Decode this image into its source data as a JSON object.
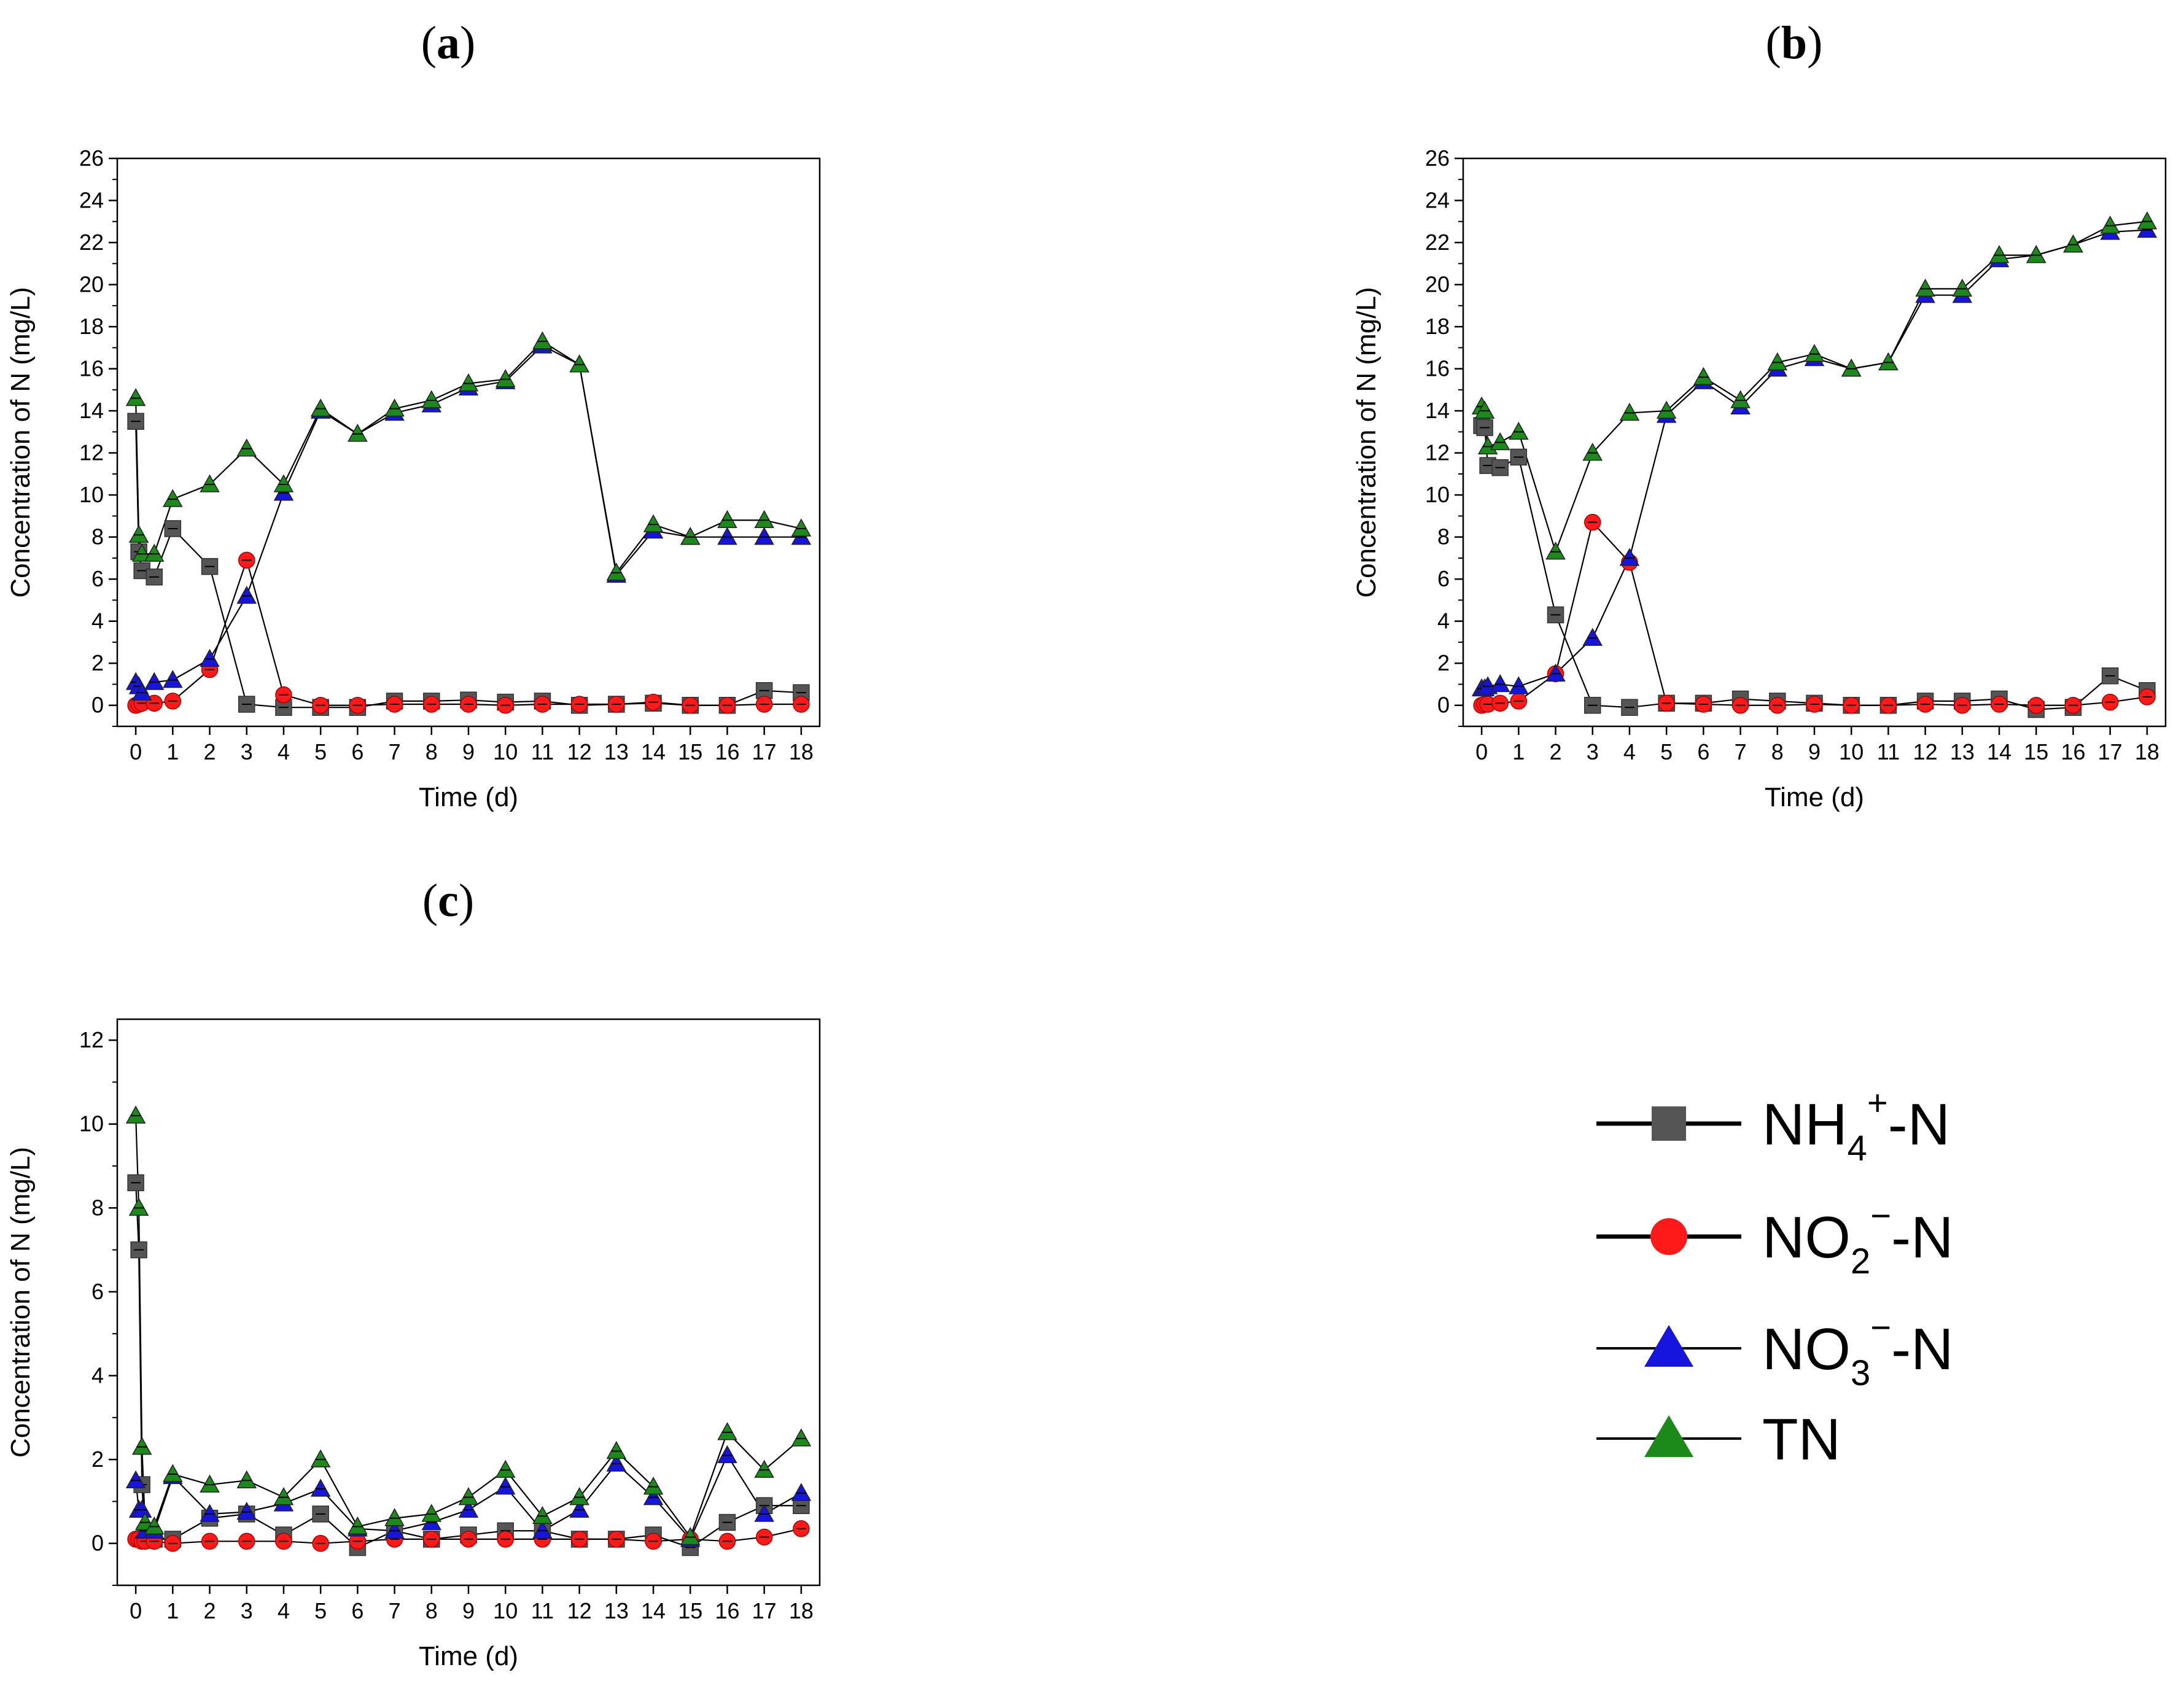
{
  "chart_data": [
    {
      "type": "line",
      "panel_label": "a",
      "title": "",
      "xlabel": "Time (d)",
      "ylabel": "Concentration of N (mg/L)",
      "xlim": [
        -0.5,
        18.5
      ],
      "ylim": [
        -1,
        26
      ],
      "yticks": [
        0,
        2,
        4,
        6,
        8,
        10,
        12,
        14,
        16,
        18,
        20,
        22,
        24,
        26
      ],
      "xticks": [
        0,
        1,
        2,
        3,
        4,
        5,
        6,
        7,
        8,
        9,
        10,
        11,
        12,
        13,
        14,
        15,
        16,
        17,
        18
      ],
      "series": [
        {
          "name": "NH4+-N",
          "x": [
            0,
            0.083,
            0.167,
            0.5,
            1,
            2,
            3,
            4,
            5,
            6,
            7,
            8,
            9,
            10,
            11,
            12,
            13,
            14,
            15,
            16,
            17,
            18
          ],
          "values": [
            13.5,
            7.3,
            6.4,
            6.1,
            8.4,
            6.6,
            0.05,
            -0.1,
            -0.1,
            -0.1,
            0.2,
            0.2,
            0.25,
            0.15,
            0.2,
            0.0,
            0.05,
            0.1,
            0.0,
            0.0,
            0.7,
            0.6
          ]
        },
        {
          "name": "NO2−-N",
          "x": [
            0,
            0.083,
            0.167,
            0.5,
            1,
            2,
            3,
            4,
            5,
            6,
            7,
            8,
            9,
            10,
            11,
            12,
            13,
            14,
            15,
            16,
            17,
            18
          ],
          "values": [
            0.0,
            0.05,
            0.1,
            0.1,
            0.2,
            1.7,
            6.9,
            0.5,
            0.0,
            0.0,
            0.05,
            0.05,
            0.05,
            0.0,
            0.05,
            0.05,
            0.05,
            0.15,
            0.0,
            0.0,
            0.05,
            0.05
          ]
        },
        {
          "name": "NO3−-N",
          "x": [
            0,
            0.083,
            0.167,
            0.5,
            1,
            2,
            3,
            4,
            5,
            6,
            7,
            8,
            9,
            10,
            11,
            12,
            13,
            14,
            15,
            16,
            17,
            18
          ],
          "values": [
            1.1,
            0.9,
            0.6,
            1.1,
            1.2,
            2.2,
            5.2,
            10.1,
            14.0,
            12.9,
            13.9,
            14.3,
            15.1,
            15.4,
            17.1,
            16.2,
            6.2,
            8.3,
            8.0,
            8.0,
            8.0,
            8.0
          ]
        },
        {
          "name": "TN",
          "x": [
            0,
            0.083,
            0.167,
            0.5,
            1,
            2,
            3,
            4,
            5,
            6,
            7,
            8,
            9,
            10,
            11,
            12,
            13,
            14,
            15,
            16,
            17,
            18
          ],
          "values": [
            14.6,
            8.1,
            7.2,
            7.2,
            9.8,
            10.5,
            12.2,
            10.5,
            14.1,
            12.9,
            14.1,
            14.5,
            15.3,
            15.5,
            17.3,
            16.2,
            6.3,
            8.6,
            8.0,
            8.8,
            8.8,
            8.4
          ]
        }
      ]
    },
    {
      "type": "line",
      "panel_label": "b",
      "title": "",
      "xlabel": "Time (d)",
      "ylabel": "Concentration of N (mg/L)",
      "xlim": [
        -0.5,
        18.5
      ],
      "ylim": [
        -1,
        26
      ],
      "yticks": [
        0,
        2,
        4,
        6,
        8,
        10,
        12,
        14,
        16,
        18,
        20,
        22,
        24,
        26
      ],
      "xticks": [
        0,
        1,
        2,
        3,
        4,
        5,
        6,
        7,
        8,
        9,
        10,
        11,
        12,
        13,
        14,
        15,
        16,
        17,
        18
      ],
      "series": [
        {
          "name": "NH4+-N",
          "x": [
            0,
            0.083,
            0.167,
            0.5,
            1,
            2,
            3,
            4,
            5,
            6,
            7,
            8,
            9,
            10,
            11,
            12,
            13,
            14,
            15,
            16,
            17,
            18
          ],
          "values": [
            13.3,
            13.2,
            11.4,
            11.3,
            11.8,
            4.3,
            0.0,
            -0.1,
            0.1,
            0.1,
            0.3,
            0.2,
            0.1,
            0.0,
            0.0,
            0.2,
            0.2,
            0.3,
            -0.2,
            -0.1,
            1.4,
            0.7
          ]
        },
        {
          "name": "NO2−-N",
          "x": [
            0,
            0.083,
            0.167,
            0.5,
            1,
            2,
            3,
            4,
            5,
            6,
            7,
            8,
            9,
            10,
            11,
            12,
            13,
            14,
            15,
            16,
            17,
            18
          ],
          "values": [
            0.0,
            0.05,
            0.05,
            0.1,
            0.2,
            1.5,
            8.7,
            6.8,
            0.1,
            0.05,
            0.0,
            0.0,
            0.05,
            0.0,
            0.0,
            0.05,
            0.0,
            0.05,
            0.0,
            0.0,
            0.15,
            0.4
          ]
        },
        {
          "name": "NO3−-N",
          "x": [
            0,
            0.083,
            0.167,
            0.5,
            1,
            2,
            3,
            4,
            5,
            6,
            7,
            8,
            9,
            10,
            11,
            12,
            13,
            14,
            15,
            16,
            17,
            18
          ],
          "values": [
            0.8,
            0.8,
            0.9,
            1.0,
            0.9,
            1.5,
            3.2,
            7.0,
            13.8,
            15.4,
            14.2,
            16.0,
            16.5,
            16.0,
            16.3,
            19.5,
            19.5,
            21.2,
            21.4,
            21.9,
            22.5,
            22.6
          ]
        },
        {
          "name": "TN",
          "x": [
            0,
            0.083,
            0.167,
            0.5,
            1,
            2,
            3,
            4,
            5,
            6,
            7,
            8,
            9,
            10,
            11,
            12,
            13,
            14,
            15,
            16,
            17,
            18
          ],
          "values": [
            14.2,
            14.0,
            12.3,
            12.5,
            13.0,
            7.3,
            12.0,
            13.9,
            14.0,
            15.6,
            14.5,
            16.3,
            16.7,
            16.0,
            16.3,
            19.8,
            19.8,
            21.4,
            21.4,
            21.9,
            22.8,
            23.0
          ]
        }
      ]
    },
    {
      "type": "line",
      "panel_label": "c",
      "title": "",
      "xlabel": "Time (d)",
      "ylabel": "Concentration of N (mg/L)",
      "xlim": [
        -0.5,
        18.5
      ],
      "ylim": [
        -1,
        12.5
      ],
      "yticks": [
        0,
        2,
        4,
        6,
        8,
        10,
        12
      ],
      "xticks": [
        0,
        1,
        2,
        3,
        4,
        5,
        6,
        7,
        8,
        9,
        10,
        11,
        12,
        13,
        14,
        15,
        16,
        17,
        18
      ],
      "series": [
        {
          "name": "NH4+-N",
          "x": [
            0,
            0.083,
            0.167,
            0.25,
            0.5,
            1,
            2,
            3,
            4,
            5,
            6,
            7,
            8,
            9,
            10,
            11,
            12,
            13,
            14,
            15,
            16,
            17,
            18
          ],
          "values": [
            8.6,
            7.0,
            1.4,
            0.2,
            0.1,
            0.1,
            0.6,
            0.7,
            0.2,
            0.7,
            -0.1,
            0.3,
            0.1,
            0.2,
            0.3,
            0.3,
            0.1,
            0.1,
            0.2,
            -0.1,
            0.5,
            0.9,
            0.9
          ]
        },
        {
          "name": "NO2−-N",
          "x": [
            0,
            0.083,
            0.167,
            0.25,
            0.5,
            1,
            2,
            3,
            4,
            5,
            6,
            7,
            8,
            9,
            10,
            11,
            12,
            13,
            14,
            15,
            16,
            17,
            18
          ],
          "values": [
            0.1,
            0.1,
            0.05,
            0.05,
            0.05,
            0.0,
            0.05,
            0.05,
            0.05,
            0.0,
            0.05,
            0.1,
            0.1,
            0.1,
            0.1,
            0.1,
            0.1,
            0.1,
            0.05,
            0.1,
            0.05,
            0.15,
            0.35
          ]
        },
        {
          "name": "NO3−-N",
          "x": [
            0,
            0.083,
            0.167,
            0.25,
            0.5,
            1,
            2,
            3,
            4,
            5,
            6,
            7,
            8,
            9,
            10,
            11,
            12,
            13,
            14,
            15,
            16,
            17,
            18
          ],
          "values": [
            1.5,
            0.8,
            0.8,
            0.3,
            0.3,
            1.6,
            0.7,
            0.75,
            0.95,
            1.3,
            0.35,
            0.3,
            0.5,
            0.8,
            1.35,
            0.3,
            0.8,
            1.9,
            1.1,
            0.1,
            2.1,
            0.7,
            1.2
          ]
        },
        {
          "name": "TN",
          "x": [
            0,
            0.083,
            0.167,
            0.25,
            0.5,
            1,
            2,
            3,
            4,
            5,
            6,
            7,
            8,
            9,
            10,
            11,
            12,
            13,
            14,
            15,
            16,
            17,
            18
          ],
          "values": [
            10.2,
            8.0,
            2.3,
            0.5,
            0.4,
            1.65,
            1.4,
            1.5,
            1.1,
            2.0,
            0.4,
            0.6,
            0.7,
            1.1,
            1.75,
            0.65,
            1.1,
            2.2,
            1.35,
            0.15,
            2.65,
            1.75,
            2.5
          ]
        }
      ]
    }
  ],
  "legend": {
    "entries": [
      {
        "name": "NH4+-N",
        "main": "NH",
        "sub": "4",
        "sup": "+",
        "tail": "-N"
      },
      {
        "name": "NO2−-N",
        "main": "NO",
        "sub": "2",
        "sup": "−",
        "tail": "-N"
      },
      {
        "name": "NO3−-N",
        "main": "NO",
        "sub": "3",
        "sup": "−",
        "tail": "-N"
      },
      {
        "name": "TN",
        "main": "TN",
        "sub": "",
        "sup": "",
        "tail": ""
      }
    ]
  },
  "colors": {
    "NH4+-N": "#555555",
    "NO2−-N": "#ff1a1a",
    "NO3−-N": "#1515dd",
    "TN": "#1b8a1b",
    "line": "#000000",
    "axis": "#000000"
  },
  "markers": {
    "NH4+-N": "square",
    "NO2−-N": "circle",
    "NO3−-N": "triangle",
    "TN": "triangle"
  }
}
